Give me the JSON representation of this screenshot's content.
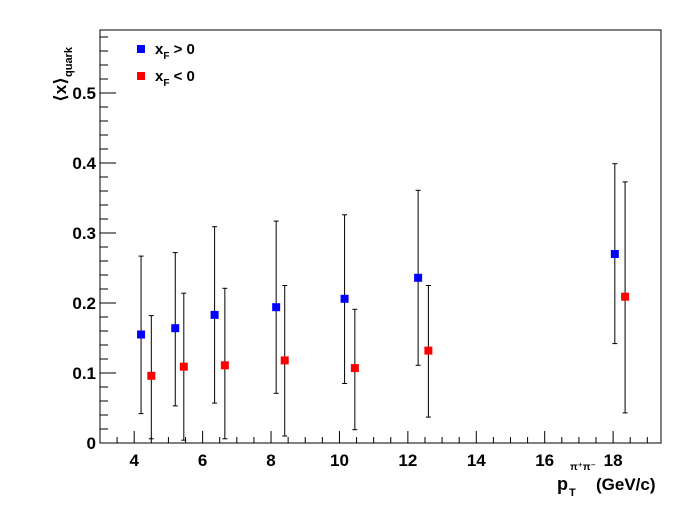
{
  "chart_data": {
    "type": "scatter",
    "ylabel": {
      "main": "⟨x⟩",
      "sub": "quark"
    },
    "xlabel": {
      "main": "p",
      "sub": "T",
      "sup": "π⁺π⁻",
      "unit": "(GeV/c)"
    },
    "xlim": [
      3.0,
      19.4
    ],
    "ylim": [
      0,
      0.59
    ],
    "x_ticks": [
      4,
      6,
      8,
      10,
      12,
      14,
      16,
      18
    ],
    "y_ticks": [
      0,
      0.1,
      0.2,
      0.3,
      0.4,
      0.5
    ],
    "x_tick_labels": [
      "4",
      "6",
      "8",
      "10",
      "12",
      "14",
      "16",
      "18"
    ],
    "y_tick_labels": [
      "0",
      "0.1",
      "0.2",
      "0.3",
      "0.4",
      "0.5"
    ],
    "grid": false,
    "legend_position": "top-left",
    "series": [
      {
        "name": "x_F > 0",
        "legend": {
          "main": "x",
          "sub": "F",
          "rest": " > 0"
        },
        "color": "#0000ff",
        "marker": "square",
        "points": [
          {
            "x": 4.2,
            "y": 0.155,
            "err_low": 0.113,
            "err_high": 0.112
          },
          {
            "x": 5.2,
            "y": 0.164,
            "err_low": 0.111,
            "err_high": 0.108
          },
          {
            "x": 6.35,
            "y": 0.183,
            "err_low": 0.126,
            "err_high": 0.126
          },
          {
            "x": 8.15,
            "y": 0.194,
            "err_low": 0.123,
            "err_high": 0.123
          },
          {
            "x": 10.15,
            "y": 0.206,
            "err_low": 0.121,
            "err_high": 0.12
          },
          {
            "x": 12.3,
            "y": 0.236,
            "err_low": 0.125,
            "err_high": 0.125
          },
          {
            "x": 18.05,
            "y": 0.27,
            "err_low": 0.128,
            "err_high": 0.129
          }
        ]
      },
      {
        "name": "x_F < 0",
        "legend": {
          "main": "x",
          "sub": "F",
          "rest": " < 0"
        },
        "color": "#ff0000",
        "marker": "square",
        "points": [
          {
            "x": 4.5,
            "y": 0.096,
            "err_low": 0.09,
            "err_high": 0.086
          },
          {
            "x": 5.45,
            "y": 0.109,
            "err_low": 0.105,
            "err_high": 0.105
          },
          {
            "x": 6.65,
            "y": 0.111,
            "err_low": 0.105,
            "err_high": 0.11
          },
          {
            "x": 8.4,
            "y": 0.118,
            "err_low": 0.108,
            "err_high": 0.107
          },
          {
            "x": 10.45,
            "y": 0.107,
            "err_low": 0.088,
            "err_high": 0.084
          },
          {
            "x": 12.6,
            "y": 0.132,
            "err_low": 0.095,
            "err_high": 0.093
          },
          {
            "x": 18.35,
            "y": 0.209,
            "err_low": 0.166,
            "err_high": 0.164
          }
        ]
      }
    ]
  }
}
